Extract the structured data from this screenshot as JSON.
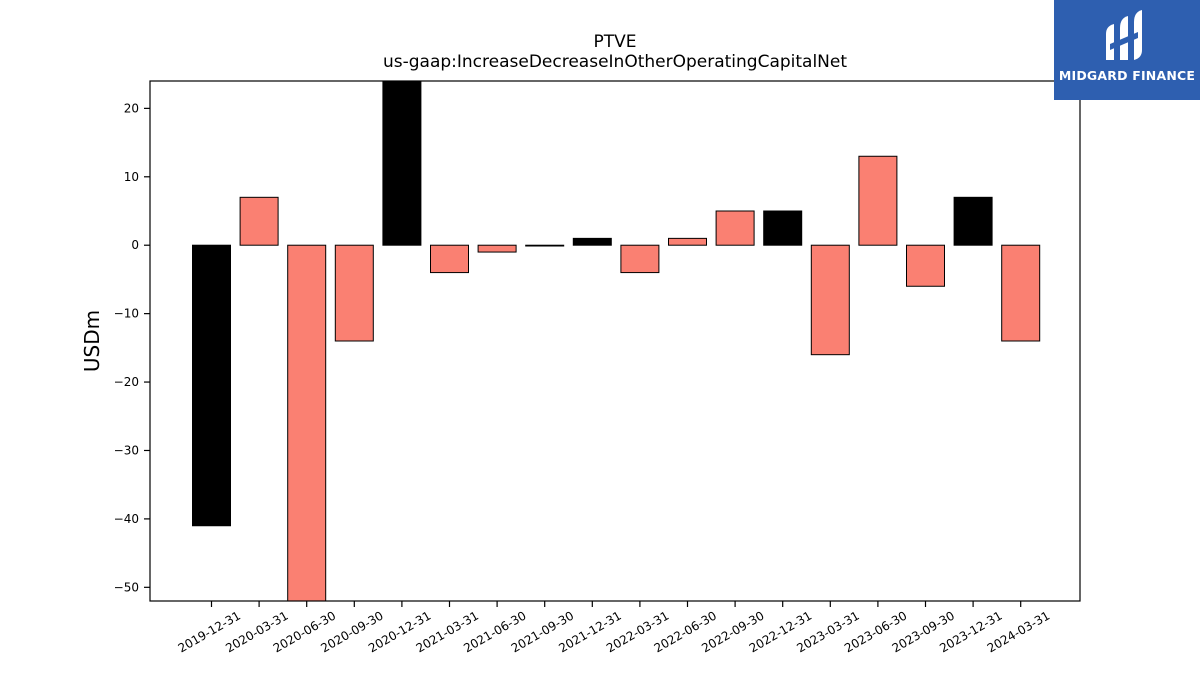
{
  "chart_data": {
    "type": "bar",
    "title": "PTVE",
    "subtitle": "us-gaap:IncreaseDecreaseInOtherOperatingCapitalNet",
    "xlabel": "",
    "ylabel": "USDm",
    "ylim": [
      -52,
      24
    ],
    "yticks": [
      20,
      10,
      0,
      -10,
      -20,
      -30,
      -40,
      -50
    ],
    "ytick_labels": [
      "20",
      "10",
      "0",
      "−10",
      "−20",
      "−30",
      "−40",
      "−50"
    ],
    "grid": false,
    "categories": [
      "2019-12-31",
      "2020-03-31",
      "2020-06-30",
      "2020-09-30",
      "2020-12-31",
      "2021-03-31",
      "2021-06-30",
      "2021-09-30",
      "2021-12-31",
      "2022-03-31",
      "2022-06-30",
      "2022-09-30",
      "2022-12-31",
      "2023-03-31",
      "2023-06-30",
      "2023-09-30",
      "2023-12-31",
      "2024-03-31"
    ],
    "values": [
      -41,
      7,
      -52,
      -14,
      24,
      -4,
      -1,
      0,
      1,
      -4,
      1,
      5,
      5,
      -16,
      13,
      -6,
      7,
      -14
    ],
    "colors": [
      "#000000",
      "#fa8072",
      "#fa8072",
      "#fa8072",
      "#000000",
      "#fa8072",
      "#fa8072",
      "#000000",
      "#000000",
      "#fa8072",
      "#fa8072",
      "#fa8072",
      "#000000",
      "#fa8072",
      "#fa8072",
      "#fa8072",
      "#000000",
      "#fa8072"
    ]
  },
  "logo": {
    "text": "MIDGARD FINANCE",
    "background": "#2e5fb0"
  }
}
